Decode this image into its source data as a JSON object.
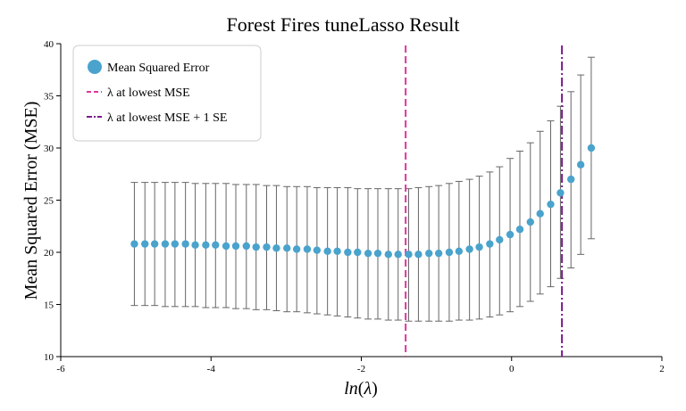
{
  "chart_data": {
    "type": "scatter",
    "title": "Forest Fires tuneLasso Result",
    "xlabel": "ln(λ)",
    "xlabel_parts": {
      "fn": "ln",
      "open": "(",
      "sym": "λ",
      "close": ")"
    },
    "ylabel": "Mean Squared Error (MSE)",
    "xlim": [
      -6,
      2
    ],
    "ylim": [
      10,
      40
    ],
    "xticks": [
      "-6",
      "-4",
      "-2",
      "0",
      "2"
    ],
    "yticks": [
      "10",
      "15",
      "20",
      "25",
      "30",
      "35",
      "40"
    ],
    "series": [
      {
        "name": "Mean Squared Error",
        "color": "#4aa3cc",
        "x": [
          -5.02,
          -4.88,
          -4.75,
          -4.61,
          -4.48,
          -4.34,
          -4.21,
          -4.07,
          -3.94,
          -3.8,
          -3.67,
          -3.53,
          -3.4,
          -3.26,
          -3.13,
          -2.99,
          -2.86,
          -2.72,
          -2.59,
          -2.45,
          -2.32,
          -2.18,
          -2.05,
          -1.91,
          -1.78,
          -1.64,
          -1.51,
          -1.37,
          -1.24,
          -1.1,
          -0.97,
          -0.83,
          -0.7,
          -0.56,
          -0.43,
          -0.29,
          -0.16,
          -0.02,
          0.11,
          0.25,
          0.38,
          0.52,
          0.65,
          0.79,
          0.92,
          1.06
        ],
        "y": [
          20.8,
          20.8,
          20.8,
          20.8,
          20.8,
          20.8,
          20.7,
          20.7,
          20.7,
          20.6,
          20.6,
          20.6,
          20.5,
          20.5,
          20.4,
          20.4,
          20.3,
          20.3,
          20.2,
          20.1,
          20.1,
          20.0,
          20.0,
          19.9,
          19.9,
          19.8,
          19.8,
          19.8,
          19.8,
          19.9,
          19.9,
          20.0,
          20.1,
          20.3,
          20.5,
          20.8,
          21.2,
          21.7,
          22.2,
          22.9,
          23.7,
          24.6,
          25.7,
          27.0,
          28.4,
          30.0
        ],
        "y_upper": [
          26.7,
          26.7,
          26.7,
          26.7,
          26.7,
          26.7,
          26.6,
          26.6,
          26.6,
          26.6,
          26.5,
          26.5,
          26.5,
          26.4,
          26.4,
          26.3,
          26.3,
          26.3,
          26.2,
          26.2,
          26.2,
          26.2,
          26.1,
          26.1,
          26.1,
          26.1,
          26.1,
          26.1,
          26.2,
          26.3,
          26.4,
          26.6,
          26.8,
          27.0,
          27.3,
          27.7,
          28.2,
          29.0,
          29.7,
          30.5,
          31.6,
          32.6,
          34.0,
          35.4,
          37.0,
          38.7
        ],
        "y_lower": [
          14.9,
          14.9,
          14.9,
          14.8,
          14.8,
          14.8,
          14.8,
          14.7,
          14.7,
          14.7,
          14.6,
          14.6,
          14.5,
          14.5,
          14.4,
          14.3,
          14.3,
          14.2,
          14.1,
          14.0,
          13.9,
          13.8,
          13.7,
          13.6,
          13.6,
          13.5,
          13.5,
          13.4,
          13.4,
          13.4,
          13.4,
          13.4,
          13.5,
          13.5,
          13.6,
          13.8,
          14.0,
          14.3,
          14.8,
          15.3,
          16.0,
          16.7,
          17.5,
          18.5,
          19.8,
          21.3
        ]
      }
    ],
    "vlines": [
      {
        "name": "λ at lowest MSE",
        "x": -1.41,
        "color": "#e0349c",
        "dash": "dashed"
      },
      {
        "name": "λ at lowest MSE + 1 SE",
        "x": 0.67,
        "color": "#7a1a8c",
        "dash": "dashdot"
      }
    ],
    "errorbar_color": "#666666",
    "legend_position": "top-left",
    "grid": false
  }
}
